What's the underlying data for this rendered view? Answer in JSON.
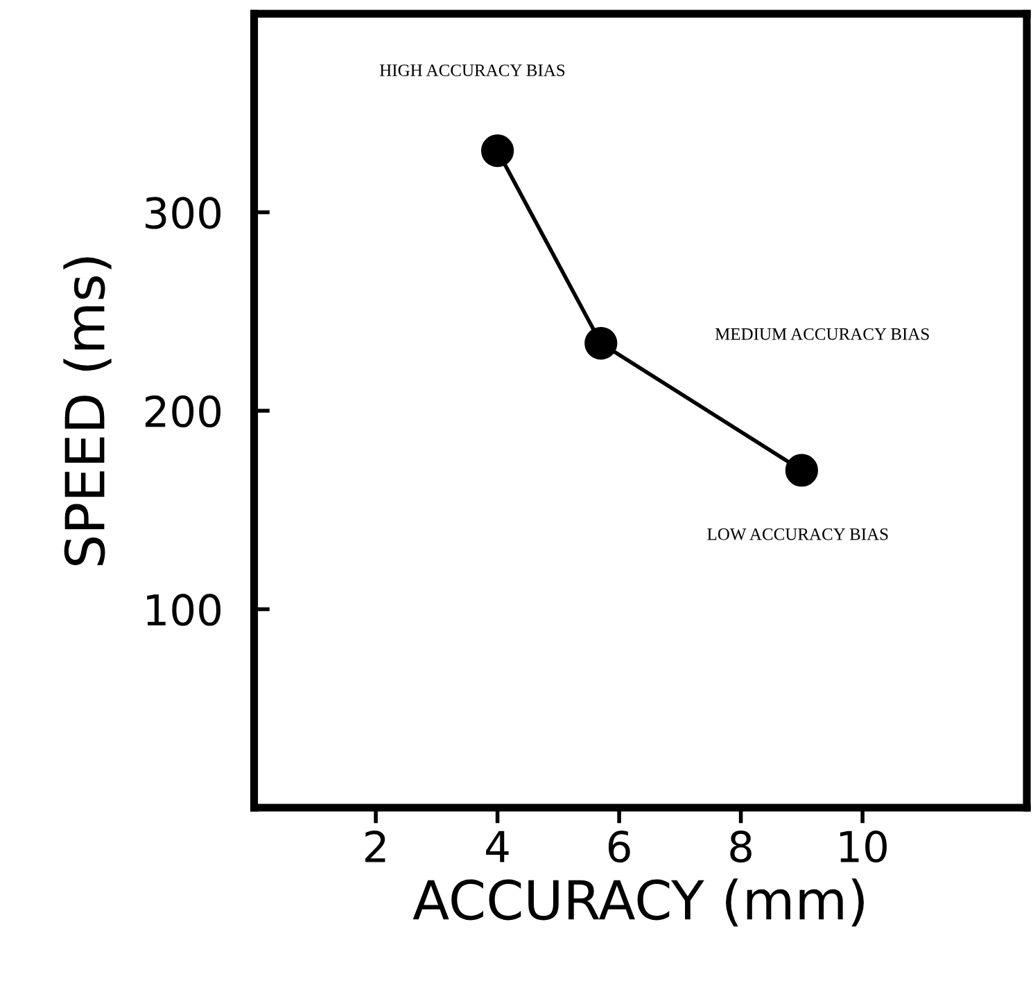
{
  "chart_data": {
    "type": "line",
    "xlabel": "ACCURACY (mm)",
    "ylabel": "SPEED (ms)",
    "x": [
      4.0,
      5.7,
      9.0
    ],
    "series": [
      {
        "color": "#000000",
        "values": [
          331,
          234,
          170
        ]
      }
    ],
    "marker": "circle",
    "line_style": "solid",
    "xlim": [
      0,
      12.7
    ],
    "ylim": [
      0,
      400
    ],
    "xticks": [
      2,
      4,
      6,
      8,
      10
    ],
    "yticks": [
      100,
      200,
      300
    ],
    "annotations": [
      "HIGH ACCURACY BIAS",
      "MEDIUM ACCURACY BIAS",
      "LOW ACCURACY BIAS"
    ],
    "grid": false,
    "legend": false
  }
}
